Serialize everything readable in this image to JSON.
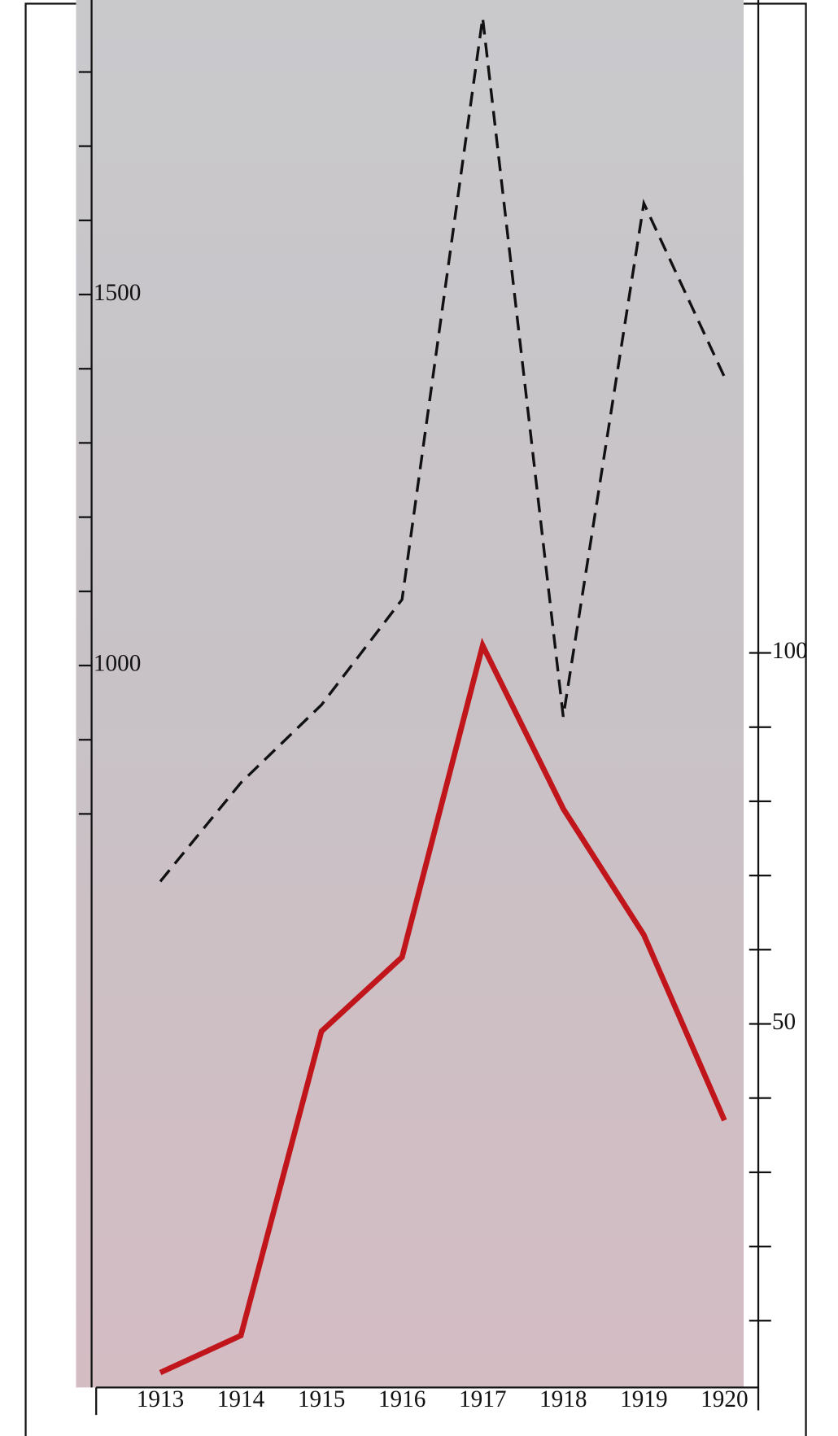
{
  "chart_data": {
    "type": "line",
    "categories": [
      "1913",
      "1914",
      "1915",
      "1916",
      "1917",
      "1918",
      "1919",
      "1920"
    ],
    "series": [
      {
        "color": "#111111",
        "dash": true,
        "axis": "y",
        "values": [
          709,
          842,
          947,
          1089,
          1873,
          931,
          1623,
          1389
        ]
      },
      {
        "color": "#c0151b",
        "dash": false,
        "axis": "y2",
        "values": [
          3,
          8,
          49,
          59,
          101,
          79,
          62,
          37
        ]
      }
    ],
    "ylim": [
      27,
      1897
    ],
    "yticks": [
      1000,
      1500
    ],
    "yminorticks": [
      800,
      900,
      1100,
      1200,
      1300,
      1400,
      1600,
      1700,
      1800
    ],
    "y2lim": [
      1,
      188
    ],
    "y2ticks": [
      50,
      100
    ],
    "y2minorticks": [
      10,
      20,
      30,
      40,
      60,
      70,
      80,
      90
    ]
  }
}
